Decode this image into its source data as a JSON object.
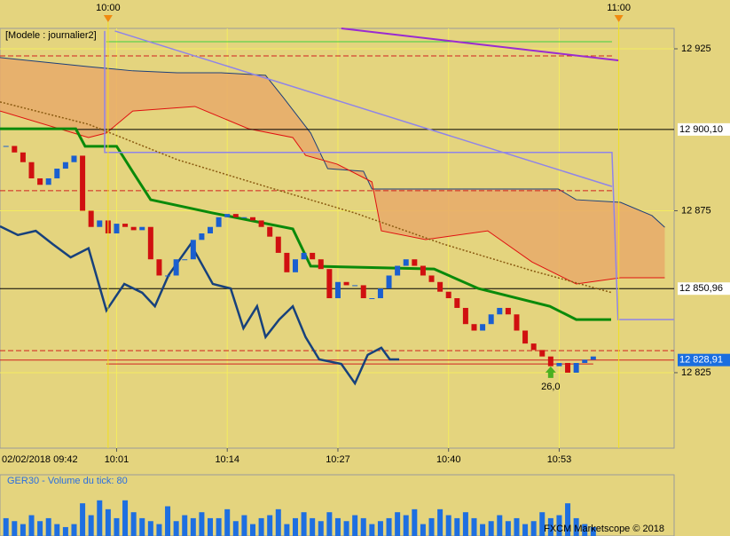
{
  "chart_data": {
    "type": "candlestick",
    "title": "[Modele : journalier2]",
    "date_label": "02/02/2018 09:42",
    "footer": "FXCM Marketscope © 2018",
    "up_color": "#1a5fd0",
    "down_color": "#d01010",
    "xlim": [
      -12.7,
      66.5
    ],
    "ylim": [
      12801.7,
      12931.3
    ],
    "grid": true,
    "yticks": [
      {
        "value": 12925,
        "label": "12 925"
      },
      {
        "value": 12875,
        "label": "12 875"
      },
      {
        "value": 12825,
        "label": "12 825"
      }
    ],
    "xticks": [
      {
        "value": 1,
        "label": "10:01"
      },
      {
        "value": 14,
        "label": "10:14"
      },
      {
        "value": 27,
        "label": "10:27"
      },
      {
        "value": 40,
        "label": "10:40"
      },
      {
        "value": 53,
        "label": "10:53"
      }
    ],
    "session_marks": [
      {
        "value": 0,
        "label": "10:00"
      },
      {
        "value": 60,
        "label": "11:00"
      }
    ],
    "x": [
      -12,
      -11,
      -10,
      -9,
      -8,
      -7,
      -6,
      -5,
      -4,
      -3,
      -2,
      -1,
      0,
      1,
      2,
      3,
      4,
      5,
      6,
      7,
      8,
      9,
      10,
      11,
      12,
      13,
      14,
      15,
      16,
      17,
      18,
      19,
      20,
      21,
      22,
      23,
      24,
      25,
      26,
      27,
      28,
      29,
      30,
      31,
      32,
      33,
      34,
      35,
      36,
      37,
      38,
      39,
      40,
      41,
      42,
      43,
      44,
      45,
      46,
      47,
      48,
      49,
      50,
      51,
      52,
      53,
      54,
      55,
      56,
      57
    ],
    "close": [
      12895,
      12893,
      12890,
      12885,
      12883,
      12885,
      12888,
      12890,
      12892,
      12875,
      12870,
      12872,
      12868,
      12871,
      12870,
      12869,
      12870,
      12860,
      12855,
      12855,
      12860,
      12860,
      12866,
      12868,
      12870,
      12873,
      12874,
      12873,
      12873,
      12872,
      12870,
      12867,
      12862,
      12856,
      12860,
      12862,
      12860,
      12857,
      12848,
      12853,
      12852,
      12852,
      12848,
      12848,
      12851,
      12855,
      12858,
      12860,
      12858,
      12855,
      12853,
      12850,
      12848,
      12845,
      12840,
      12838,
      12840,
      12843,
      12845,
      12843,
      12838,
      12834,
      12832,
      12830,
      12827,
      12828,
      12825,
      12828,
      12829,
      12830
    ],
    "cloud": {
      "color": "#e8aa6a",
      "upper": {
        "color": "#1c3f7a",
        "x": [
          -12.7,
          -7.5,
          -2.3,
          2.9,
          8.1,
          13.3,
          18.5,
          20.6,
          23.8,
          25.8,
          30.0,
          31.0,
          52.9,
          55.0,
          60.2,
          63.9,
          65.4
        ],
        "values": [
          12922.3,
          12920.9,
          12919.5,
          12918.2,
          12917.6,
          12917.6,
          12916.8,
          12909.9,
          12899.0,
          12888.0,
          12887.2,
          12881.7,
          12881.7,
          12878.4,
          12877.6,
          12873.5,
          12869.9
        ]
      },
      "lower": {
        "color": "#e01010",
        "x": [
          -12.7,
          -2.3,
          -0.2,
          2.9,
          10.2,
          16.5,
          21.7,
          23.2,
          26.9,
          31.0,
          32.1,
          37.3,
          44.6,
          49.8,
          55.0,
          60.2,
          65.4
        ],
        "values": [
          12905.8,
          12897.6,
          12899.0,
          12905.8,
          12907.2,
          12900.3,
          12897.6,
          12892.1,
          12889.4,
          12883.9,
          12868.8,
          12866.1,
          12868.8,
          12859.2,
          12852.4,
          12854.3,
          12854.3
        ]
      }
    },
    "lines": [
      {
        "color": "#0a8a0a",
        "width": 3,
        "x": [
          -12.7,
          -3.8,
          -2.7,
          1.0,
          3.0,
          5.0,
          12.3,
          21.7,
          23.8,
          38.3,
          43.5,
          51.9,
          55.0,
          59.1
        ],
        "values": [
          12900.3,
          12900.3,
          12894.9,
          12894.9,
          12886.6,
          12878.4,
          12874.3,
          12869.4,
          12857.9,
          12857.0,
          12851.0,
          12845.5,
          12841.4,
          12841.4
        ]
      },
      {
        "color": "#17417c",
        "width": 2.5,
        "x": [
          -12.7,
          -10.6,
          -8.5,
          -6.5,
          -4.4,
          -2.3,
          -0.2,
          1.9,
          4.0,
          5.5,
          7.1,
          9.7,
          12.3,
          14.4,
          15.9,
          17.5,
          18.5,
          20.1,
          21.7,
          23.2,
          24.8,
          27.4,
          29.0,
          30.5,
          32.1,
          33.1,
          34.2
        ],
        "values": [
          12870.2,
          12867.5,
          12868.8,
          12864.7,
          12860.6,
          12863.4,
          12844.2,
          12852.4,
          12849.7,
          12845.5,
          12855.1,
          12864.7,
          12852.4,
          12851.0,
          12838.7,
          12845.5,
          12836.0,
          12841.4,
          12845.5,
          12836.0,
          12829.1,
          12827.7,
          12821.7,
          12830.5,
          12832.7,
          12829.1,
          12829.1
        ]
      },
      {
        "color": "#8f84e8",
        "width": 1.5,
        "x": [
          0.8,
          59.2
        ],
        "values": [
          12930.5,
          12882.5
        ]
      },
      {
        "color": "#8f84e8",
        "width": 1.5,
        "x": [
          -0.4,
          -0.4,
          59.2,
          59.9,
          66.5
        ],
        "values": [
          12930.5,
          12893,
          12893,
          12841.4,
          12841.4
        ]
      },
      {
        "color": "#9a2bd0",
        "width": 2,
        "x": [
          27.4,
          60.0
        ],
        "values": [
          12931.3,
          12921.4
        ]
      },
      {
        "color": "#8a5a10",
        "width": 1.5,
        "dash": "2 2",
        "x": [
          -12.7,
          -2.3,
          8.1,
          18.5,
          29.0,
          39.4,
          49.8,
          59.2
        ],
        "values": [
          12908.6,
          12901.7,
          12890.8,
          12882.5,
          12874.3,
          12864.7,
          12856.5,
          12849.7
        ]
      }
    ],
    "hlines": [
      {
        "value": 12927.2,
        "color": "#40d040",
        "from": -0.2,
        "to": 59.2
      },
      {
        "value": 12922.8,
        "color": "#d02020",
        "dash": "6 3",
        "from": -12.7,
        "to": 59.2
      },
      {
        "value": 12881.2,
        "color": "#d02020",
        "dash": "6 3",
        "from": -12.7,
        "to": 59.2
      },
      {
        "value": 12831.8,
        "color": "#d02020",
        "dash": "6 3",
        "from": -12.7,
        "to": 66.5
      },
      {
        "value": 12827.7,
        "color": "#d02020",
        "from": -0.2,
        "to": 57.0
      }
    ],
    "levels": [
      {
        "value": 12900.1,
        "label": "12 900,10",
        "color": "#000000",
        "text_color": "#000000",
        "box": "#ffffff"
      },
      {
        "value": 12850.96,
        "label": "12 850,96",
        "color": "#000000",
        "text_color": "#000000",
        "box": "#ffffff"
      },
      {
        "value": 12828.91,
        "label": "12 828,91",
        "color": "#d02020",
        "text_color": "#ffffff",
        "box": "#1a6ee0"
      }
    ],
    "annotations": [
      {
        "text": "26,0",
        "x": 52,
        "y": 12822
      }
    ],
    "volume": {
      "title": "GER30 - Volume du tick: 80",
      "color": "#1e6fe0",
      "ylim": [
        0,
        100
      ],
      "values": [
        30,
        25,
        20,
        35,
        25,
        30,
        20,
        15,
        20,
        55,
        35,
        60,
        45,
        30,
        60,
        40,
        30,
        25,
        20,
        50,
        25,
        35,
        30,
        40,
        30,
        30,
        45,
        25,
        35,
        20,
        30,
        35,
        45,
        20,
        30,
        40,
        30,
        25,
        40,
        30,
        25,
        35,
        30,
        20,
        25,
        30,
        40,
        35,
        45,
        20,
        30,
        45,
        35,
        30,
        40,
        30,
        20,
        25,
        35,
        25,
        30,
        20,
        25,
        40,
        30,
        35,
        55,
        30,
        20,
        15
      ]
    }
  }
}
